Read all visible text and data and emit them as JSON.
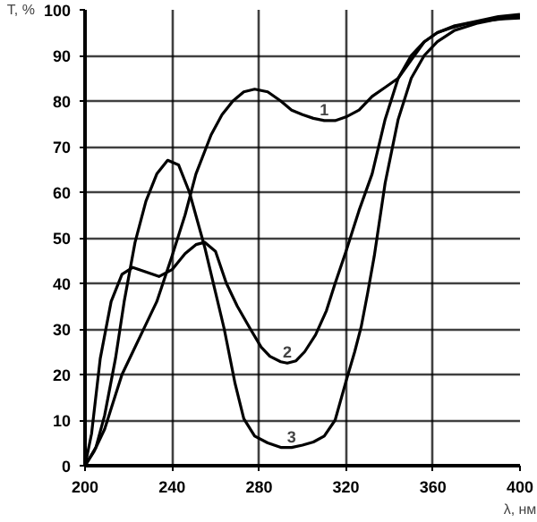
{
  "chart_data": {
    "type": "line",
    "xlabel": "λ, нм",
    "ylabel": "T, %",
    "xlim": [
      200,
      400
    ],
    "ylim": [
      0,
      100
    ],
    "xticks": [
      200,
      240,
      280,
      320,
      360,
      400
    ],
    "yticks": [
      0,
      10,
      20,
      30,
      40,
      50,
      60,
      70,
      80,
      90,
      100
    ],
    "grid": true,
    "marker": "none",
    "line_style": "solid",
    "series": [
      {
        "name": "1",
        "color": "#000000",
        "x": [
          200,
          204,
          209,
          213,
          217,
          222,
          228,
          233,
          240,
          246,
          251,
          258,
          263,
          268,
          273,
          278,
          284,
          290,
          295,
          300,
          305,
          310,
          315,
          320,
          326,
          332,
          338,
          344,
          350,
          356,
          362,
          368,
          376,
          384,
          392,
          400
        ],
        "values": [
          0,
          3,
          8,
          14,
          20,
          25,
          31,
          36,
          46,
          55,
          64,
          72.6,
          77,
          80,
          82,
          82.6,
          82,
          80,
          78,
          77,
          76.2,
          75.7,
          75.7,
          76.5,
          78,
          81,
          83,
          85,
          89,
          93,
          95,
          96,
          97,
          97.6,
          98,
          98.2
        ]
      },
      {
        "name": "2",
        "color": "#000000",
        "x": [
          200,
          203,
          207,
          212,
          217,
          222,
          228,
          234,
          240,
          246,
          251,
          255,
          260,
          265,
          270,
          276,
          281,
          285,
          290,
          293,
          297,
          301,
          306,
          311,
          315,
          320,
          326,
          332,
          338,
          344,
          350,
          356,
          362,
          370,
          380,
          390,
          400
        ],
        "values": [
          0,
          7,
          23.5,
          36,
          42,
          43.5,
          42.5,
          41.5,
          43,
          46.5,
          48.5,
          49,
          47,
          40,
          35,
          30,
          26,
          24,
          22.8,
          22.5,
          23,
          25,
          28.7,
          34,
          40,
          47,
          56,
          64,
          76,
          85,
          90,
          93,
          95,
          96.5,
          97.5,
          98.5,
          99
        ]
      },
      {
        "name": "3",
        "color": "#000000",
        "x": [
          200,
          205,
          209,
          214,
          218,
          223,
          228,
          233,
          238,
          243,
          248,
          255,
          260,
          264,
          269,
          273,
          278,
          284,
          290,
          295,
          300,
          305,
          310,
          315,
          320,
          324,
          327,
          330,
          333,
          338,
          344,
          350,
          356,
          362,
          370,
          380,
          390,
          400
        ],
        "values": [
          0,
          4,
          11,
          23.5,
          36,
          49,
          58,
          64,
          67,
          66,
          60,
          48,
          38,
          30,
          18,
          10.3,
          6.5,
          5,
          4,
          4,
          4.5,
          5.2,
          6.5,
          10,
          18.5,
          25,
          30.5,
          38,
          46,
          62,
          76,
          85,
          90,
          93,
          95.5,
          97,
          98,
          98.5
        ]
      }
    ],
    "legend": false
  }
}
